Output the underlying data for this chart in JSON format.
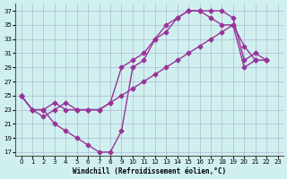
{
  "xlabel": "Windchill (Refroidissement éolien,°C)",
  "bg_color": "#d0f0f0",
  "line_color": "#993399",
  "marker": "D",
  "markersize": 2.5,
  "linewidth": 1.0,
  "ylim": [
    16.5,
    38
  ],
  "xlim": [
    -0.5,
    23.5
  ],
  "yticks": [
    17,
    19,
    21,
    23,
    25,
    27,
    29,
    31,
    33,
    35,
    37
  ],
  "xticks": [
    0,
    1,
    2,
    3,
    4,
    5,
    6,
    7,
    8,
    9,
    10,
    11,
    12,
    13,
    14,
    15,
    16,
    17,
    18,
    19,
    20,
    21,
    22,
    23
  ],
  "lines": [
    {
      "x": [
        0,
        1,
        2,
        3,
        4,
        5,
        6,
        7,
        8,
        9,
        10,
        11,
        12,
        13,
        14,
        15,
        16,
        17,
        18,
        19,
        20,
        21,
        22
      ],
      "y": [
        25,
        23,
        23,
        21,
        20,
        19,
        18,
        17,
        17,
        20,
        29,
        30,
        33,
        34,
        36,
        37,
        37,
        37,
        37,
        36,
        30,
        31,
        30
      ]
    },
    {
      "x": [
        0,
        1,
        2,
        3,
        4,
        5,
        6,
        7,
        8,
        9,
        10,
        11,
        12,
        13,
        14,
        15,
        16,
        17,
        18,
        19,
        20,
        21,
        22
      ],
      "y": [
        25,
        23,
        22,
        23,
        24,
        23,
        23,
        23,
        24,
        25,
        26,
        27,
        28,
        29,
        30,
        31,
        32,
        33,
        34,
        35,
        29,
        30,
        30
      ]
    },
    {
      "x": [
        0,
        1,
        2,
        3,
        4,
        5,
        6,
        7,
        8,
        9,
        10,
        11,
        12,
        13,
        14,
        15,
        16,
        17,
        18,
        19,
        20,
        21,
        22
      ],
      "y": [
        25,
        23,
        23,
        24,
        23,
        23,
        23,
        23,
        24,
        29,
        30,
        31,
        33,
        35,
        36,
        37,
        37,
        36,
        35,
        35,
        32,
        30,
        30
      ]
    }
  ]
}
